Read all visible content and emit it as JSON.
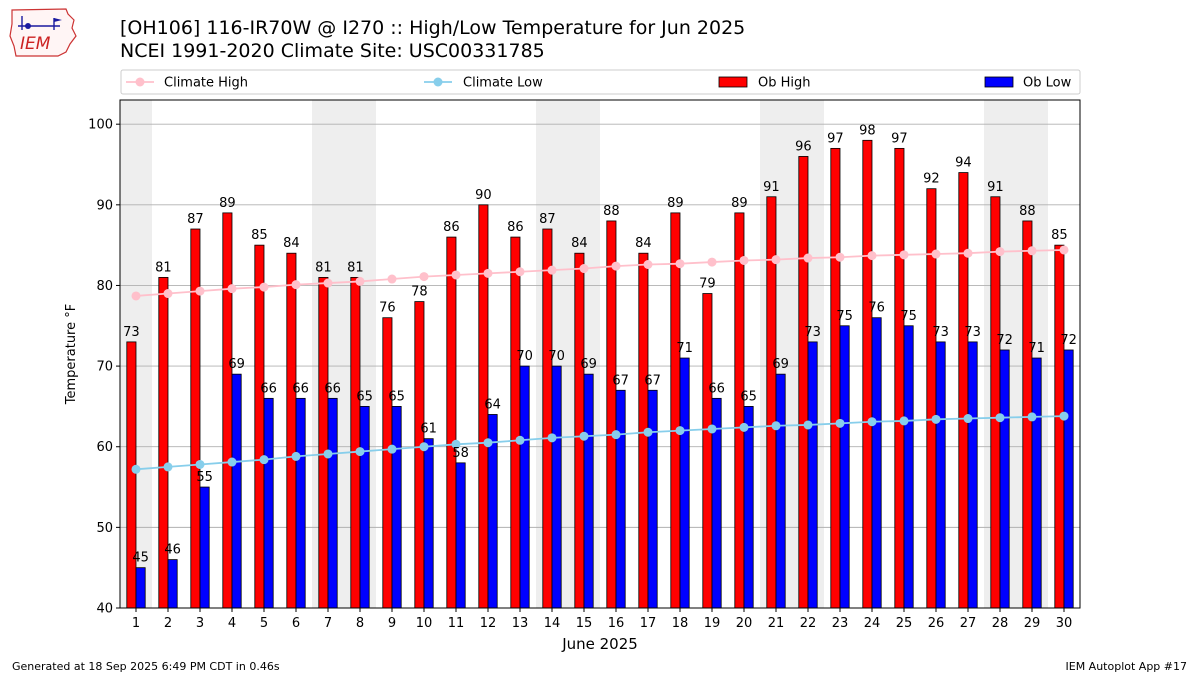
{
  "header": {
    "title_line1": "[OH106] 116-IR70W @ I270 :: High/Low Temperature for Jun 2025",
    "title_line2": "NCEI 1991-2020 Climate Site: USC00331785",
    "logo_text": "IEM"
  },
  "footer": {
    "generated": "Generated at 18 Sep 2025 6:49 PM CDT in 0.46s",
    "app": "IEM Autoplot App #17"
  },
  "colors": {
    "ob_high": "#ff0000",
    "ob_low": "#0000ff",
    "climate_high": "#ffc0cb",
    "climate_low": "#87ceeb",
    "weekend_shade": "#eeeeee",
    "grid": "#b0b0b0"
  },
  "chart_data": {
    "type": "bar",
    "xlabel": "June 2025",
    "ylabel": "Temperature °F",
    "ylim": [
      40,
      103
    ],
    "yticks": [
      40,
      50,
      60,
      70,
      80,
      90,
      100
    ],
    "grid": true,
    "legend_position": "top",
    "categories": [
      "1",
      "2",
      "3",
      "4",
      "5",
      "6",
      "7",
      "8",
      "9",
      "10",
      "11",
      "12",
      "13",
      "14",
      "15",
      "16",
      "17",
      "18",
      "19",
      "20",
      "21",
      "22",
      "23",
      "24",
      "25",
      "26",
      "27",
      "28",
      "29",
      "30"
    ],
    "weekend_shaded_days": [
      [
        1,
        1
      ],
      [
        7,
        8
      ],
      [
        14,
        15
      ],
      [
        21,
        22
      ],
      [
        28,
        29
      ]
    ],
    "series": [
      {
        "name": "Ob High",
        "kind": "bar",
        "values": [
          73,
          81,
          87,
          89,
          85,
          84,
          81,
          81,
          76,
          78,
          86,
          90,
          86,
          87,
          84,
          88,
          84,
          89,
          79,
          89,
          91,
          96,
          97,
          98,
          97,
          92,
          94,
          91,
          88,
          85
        ]
      },
      {
        "name": "Ob Low",
        "kind": "bar",
        "values": [
          45,
          46,
          55,
          69,
          66,
          66,
          66,
          65,
          65,
          61,
          58,
          64,
          70,
          70,
          69,
          67,
          67,
          71,
          66,
          65,
          69,
          73,
          75,
          76,
          75,
          73,
          73,
          72,
          71,
          72
        ]
      },
      {
        "name": "Climate High",
        "kind": "line",
        "values": [
          78.7,
          79.0,
          79.3,
          79.6,
          79.8,
          80.1,
          80.3,
          80.5,
          80.8,
          81.1,
          81.3,
          81.5,
          81.7,
          81.9,
          82.1,
          82.4,
          82.6,
          82.7,
          82.9,
          83.1,
          83.2,
          83.4,
          83.5,
          83.7,
          83.8,
          83.9,
          84.0,
          84.2,
          84.3,
          84.4
        ]
      },
      {
        "name": "Climate Low",
        "kind": "line",
        "values": [
          57.2,
          57.5,
          57.8,
          58.1,
          58.4,
          58.8,
          59.1,
          59.4,
          59.7,
          60.0,
          60.3,
          60.5,
          60.8,
          61.1,
          61.3,
          61.5,
          61.8,
          62.0,
          62.2,
          62.4,
          62.6,
          62.7,
          62.9,
          63.1,
          63.2,
          63.4,
          63.5,
          63.6,
          63.7,
          63.8
        ]
      }
    ]
  }
}
